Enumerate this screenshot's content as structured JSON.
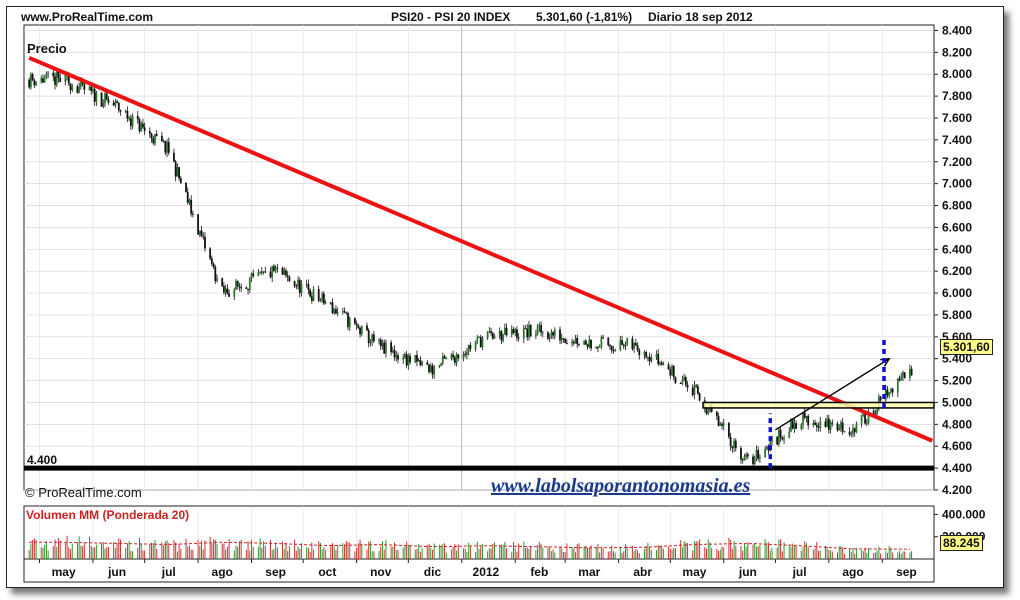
{
  "header": {
    "site": "www.ProRealTime.com",
    "instrument": "PSI20 - PSI 20 INDEX",
    "quote": "5.301,60 (-1,81%)",
    "period": "Diario  18 sep 2012"
  },
  "price_panel": {
    "title": "Precio",
    "copyright": "© ProRealTime.com",
    "watermark": "www.labolsaporantonomasia.es",
    "support_label": "4.400",
    "last_price_badge": "5.301,60",
    "yaxis_ticks": [
      "8.400",
      "8.200",
      "8.000",
      "7.800",
      "7.600",
      "7.400",
      "7.200",
      "7.000",
      "6.800",
      "6.600",
      "6.400",
      "6.200",
      "6.000",
      "5.800",
      "5.600",
      "5.400",
      "5.200",
      "5.000",
      "4.800",
      "4.600",
      "4.400",
      "4.200"
    ]
  },
  "volume_panel": {
    "title": "Volumen MM (Ponderada 20)",
    "yaxis_ticks": [
      "400.000",
      "200.000"
    ],
    "last_volume_badge": "88.245"
  },
  "xaxis_labels": [
    "may",
    "jun",
    "jul",
    "ago",
    "sep",
    "oct",
    "nov",
    "dic",
    "2012",
    "feb",
    "mar",
    "abr",
    "may",
    "jun",
    "jul",
    "ago",
    "sep"
  ],
  "colors": {
    "trendline": "#ee1111",
    "candle_up": "#2d7a2d",
    "candle_down": "#111111",
    "badge": "#ffff88",
    "watermark": "#1a3a8a",
    "volume_title": "#cc2222",
    "arrow_markers": "#1010dd"
  },
  "chart_data": [
    {
      "type": "line",
      "title": "PSI20 - PSI 20 INDEX",
      "subtitle": "Precio",
      "xlabel": "",
      "ylabel": "",
      "ylim": [
        4200,
        8450
      ],
      "grid": true,
      "series": [
        {
          "x": [
            "2011-05",
            "2011-06",
            "2011-07",
            "2011-08",
            "2011-09",
            "2011-10",
            "2011-11",
            "2011-12",
            "2012-01",
            "2012-02",
            "2012-03",
            "2012-04",
            "2012-05",
            "2012-06",
            "2012-07",
            "2012-08",
            "2012-09-18"
          ],
          "values": [
            7950,
            7700,
            7300,
            6000,
            6200,
            5900,
            5500,
            5300,
            5600,
            5650,
            5550,
            5500,
            5100,
            4450,
            4850,
            4750,
            5301.6
          ]
        }
      ],
      "annotations": [
        {
          "type": "trendline",
          "from": [
            "2011-04-25",
            8150
          ],
          "to": [
            "2012-09-30",
            4650
          ]
        },
        {
          "type": "horizontal",
          "y": 4400,
          "label": "4.400"
        },
        {
          "type": "resistance-band",
          "y1": 4950,
          "y2": 5000
        },
        {
          "type": "last-value",
          "y": 5301.6,
          "label": "5.301,60"
        },
        {
          "type": "arrow",
          "from": [
            "2012-07-01",
            4750
          ],
          "to": [
            "2012-09-05",
            5400
          ]
        }
      ]
    },
    {
      "type": "bar",
      "title": "Volumen MM (Ponderada 20)",
      "ylim": [
        0,
        440000
      ],
      "series": [
        {
          "x": [
            "2011-05",
            "2011-06",
            "2011-07",
            "2011-08",
            "2011-09",
            "2011-10",
            "2011-11",
            "2011-12",
            "2012-01",
            "2012-02",
            "2012-03",
            "2012-04",
            "2012-05",
            "2012-06",
            "2012-07",
            "2012-08",
            "2012-09-18"
          ],
          "values": [
            150000,
            140000,
            130000,
            150000,
            140000,
            120000,
            130000,
            110000,
            120000,
            110000,
            100000,
            105000,
            130000,
            140000,
            120000,
            90000,
            88245
          ]
        }
      ],
      "annotations": [
        {
          "type": "last-value",
          "y": 88245,
          "label": "88.245"
        }
      ]
    }
  ]
}
